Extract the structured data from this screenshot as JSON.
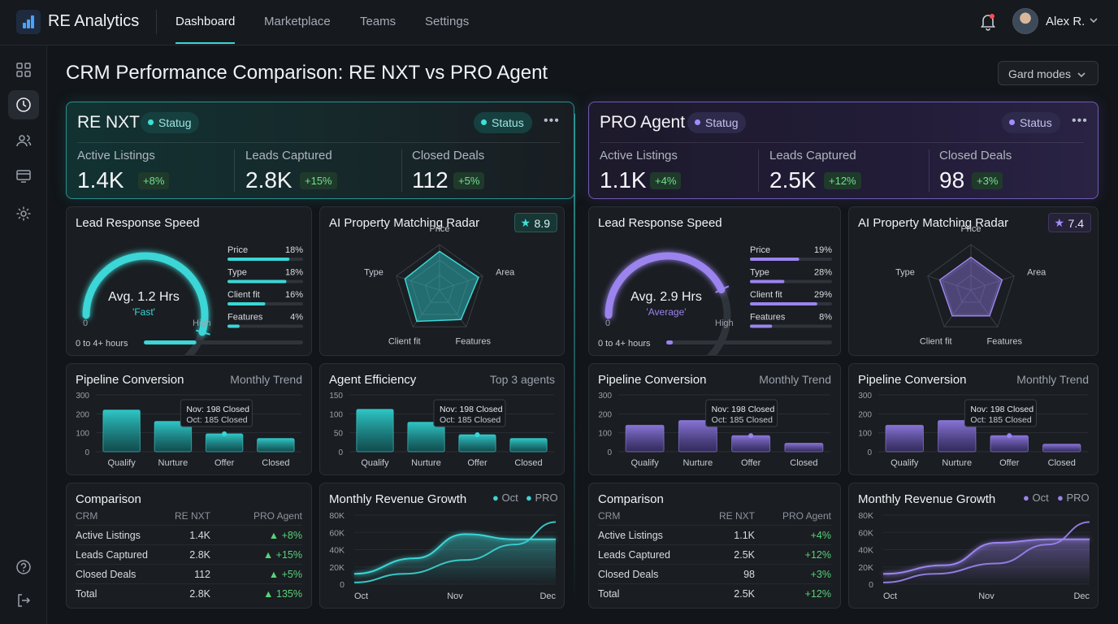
{
  "app": {
    "name": "RE Analytics",
    "nav": [
      "Dashboard",
      "Marketplace",
      "Teams",
      "Settings"
    ],
    "user": "Alex R.",
    "mode_select": "Gard modes"
  },
  "page": {
    "title": "CRM Performance Comparison: RE NXT vs PRO Agent"
  },
  "colors": {
    "teal": "#3cd6d6",
    "purple": "#9b84ee",
    "positive": "#58d27a"
  },
  "icons": [
    "chart-logo-icon",
    "bell-icon",
    "grid-icon",
    "clock-icon",
    "users-icon",
    "monitor-icon",
    "gear-icon",
    "help-icon",
    "logout-icon"
  ],
  "panels": [
    {
      "name": "RE NXT",
      "status_left": "Statug",
      "status_right": "Status",
      "stats": [
        {
          "label": "Active Listings",
          "value": "1.4K",
          "delta": "+8%"
        },
        {
          "label": "Leads Captured",
          "value": "2.8K",
          "delta": "+15%"
        },
        {
          "label": "Closed Deals",
          "value": "112",
          "delta": "+5%"
        }
      ],
      "speed": {
        "title": "Lead Response Speed",
        "avg": "Avg. 1.2 Hrs",
        "tag": "'Fast'",
        "min": "0",
        "max": "High",
        "range": "0 to 4+ hours",
        "level": 0.84,
        "progress": 0.33,
        "bars": [
          {
            "label": "Price",
            "pct": "18%",
            "fill": 0.82
          },
          {
            "label": "Type",
            "pct": "18%",
            "fill": 0.78
          },
          {
            "label": "Client fit",
            "pct": "16%",
            "fill": 0.5
          },
          {
            "label": "Features",
            "pct": "4%",
            "fill": 0.16
          }
        ]
      },
      "radar": {
        "title": "AI Property Matching Radar",
        "score": "8.9",
        "axes": [
          "Price",
          "Area",
          "Features",
          "Client fit",
          "Type"
        ],
        "values": [
          0.85,
          0.9,
          0.8,
          0.85,
          0.8
        ]
      },
      "bar1": {
        "title": "Pipeline Conversion",
        "subtitle": "Monthly Trend",
        "yticks": [
          "300",
          "200",
          "100",
          "0"
        ],
        "ymax": 300,
        "categories": [
          "Qualify",
          "Nurture",
          "Offer",
          "Closed"
        ],
        "values": [
          220,
          160,
          95,
          70
        ],
        "tip1": "Nov: 198 Closed",
        "tip2": "Oct: 185 Closed"
      },
      "bar2": {
        "title": "Agent Efficiency",
        "subtitle": "Top 3 agents",
        "yticks": [
          "150",
          "100",
          "50",
          "0"
        ],
        "ymax": 150,
        "categories": [
          "Qualify",
          "Nurture",
          "Offer",
          "Closed"
        ],
        "values": [
          112,
          78,
          45,
          35
        ],
        "tip1": "Nov: 198 Closed",
        "tip2": "Oct: 185 Closed"
      },
      "table": {
        "title": "Comparison",
        "headers": [
          "CRM",
          "RE NXT",
          "PRO Agent"
        ],
        "rows": [
          [
            "Active Listings",
            "1.4K",
            "+8%"
          ],
          [
            "Leads Captured",
            "2.8K",
            "+15%"
          ],
          [
            "Closed Deals",
            "112",
            "+5%"
          ],
          [
            "Total",
            "2.8K",
            "135%"
          ]
        ],
        "arrows": true
      },
      "revenue": {
        "title": "Monthly Revenue Growth",
        "legend": [
          "Oct",
          "PRO"
        ],
        "yticks": [
          "80K",
          "60K",
          "40K",
          "20K",
          "0"
        ],
        "xticks": [
          "Oct",
          "Nov",
          "Dec"
        ],
        "line_a": [
          [
            0,
            12
          ],
          [
            0.3,
            30
          ],
          [
            0.55,
            58
          ],
          [
            0.8,
            52
          ],
          [
            1,
            52
          ]
        ],
        "line_b": [
          [
            0,
            2
          ],
          [
            0.25,
            12
          ],
          [
            0.55,
            28
          ],
          [
            0.8,
            46
          ],
          [
            1,
            72
          ]
        ]
      }
    },
    {
      "name": "PRO Agent",
      "status_left": "Statug",
      "status_right": "Status",
      "stats": [
        {
          "label": "Active Listings",
          "value": "1.1K",
          "delta": "+4%"
        },
        {
          "label": "Leads Captured",
          "value": "2.5K",
          "delta": "+12%"
        },
        {
          "label": "Closed Deals",
          "value": "98",
          "delta": "+3%"
        }
      ],
      "speed": {
        "title": "Lead Response Speed",
        "avg": "Avg. 2.9 Hrs",
        "tag": "'Average'",
        "min": "0",
        "max": "High",
        "range": "0 to 4+ hours",
        "level": 0.66,
        "progress": 0.04,
        "bars": [
          {
            "label": "Price",
            "pct": "19%",
            "fill": 0.6
          },
          {
            "label": "Type",
            "pct": "28%",
            "fill": 0.42
          },
          {
            "label": "Client fit",
            "pct": "29%",
            "fill": 0.82
          },
          {
            "label": "Features",
            "pct": "8%",
            "fill": 0.27
          }
        ]
      },
      "radar": {
        "title": "AI Property Matching Radar",
        "score": "7.4",
        "axes": [
          "Price",
          "Area",
          "Features",
          "Client fit",
          "Type"
        ],
        "values": [
          0.72,
          0.72,
          0.7,
          0.7,
          0.72
        ]
      },
      "bar1": {
        "title": "Pipeline Conversion",
        "subtitle": "Monthly Trend",
        "yticks": [
          "300",
          "200",
          "100",
          "0"
        ],
        "ymax": 300,
        "categories": [
          "Qualify",
          "Nurture",
          "Offer",
          "Closed"
        ],
        "values": [
          140,
          165,
          85,
          45
        ],
        "tip1": "Nov: 198 Closed",
        "tip2": "Oct: 185 Closed"
      },
      "bar2": {
        "title": "Pipeline Conversion",
        "subtitle": "Monthly Trend",
        "yticks": [
          "300",
          "200",
          "100",
          "0"
        ],
        "ymax": 300,
        "categories": [
          "Qualify",
          "Nurture",
          "Offer",
          "Closed"
        ],
        "values": [
          140,
          165,
          85,
          40
        ],
        "tip1": "Nov: 198 Closed",
        "tip2": "Oct: 185 Closed"
      },
      "table": {
        "title": "Comparison",
        "headers": [
          "CRM",
          "RE NXT",
          "PRO Agent"
        ],
        "rows": [
          [
            "Active Listings",
            "1.1K",
            "+4%"
          ],
          [
            "Leads Captured",
            "2.5K",
            "+12%"
          ],
          [
            "Closed Deals",
            "98",
            "+3%"
          ],
          [
            "Total",
            "2.5K",
            "+12%"
          ]
        ],
        "arrows": false
      },
      "revenue": {
        "title": "Monthly Revenue Growth",
        "legend": [
          "Oct",
          "PRO"
        ],
        "yticks": [
          "80K",
          "60K",
          "40K",
          "20K",
          "0"
        ],
        "xticks": [
          "Oct",
          "Nov",
          "Dec"
        ],
        "line_a": [
          [
            0,
            12
          ],
          [
            0.3,
            22
          ],
          [
            0.55,
            48
          ],
          [
            0.8,
            52
          ],
          [
            1,
            52
          ]
        ],
        "line_b": [
          [
            0,
            2
          ],
          [
            0.25,
            12
          ],
          [
            0.55,
            24
          ],
          [
            0.8,
            46
          ],
          [
            1,
            72
          ]
        ]
      }
    }
  ]
}
